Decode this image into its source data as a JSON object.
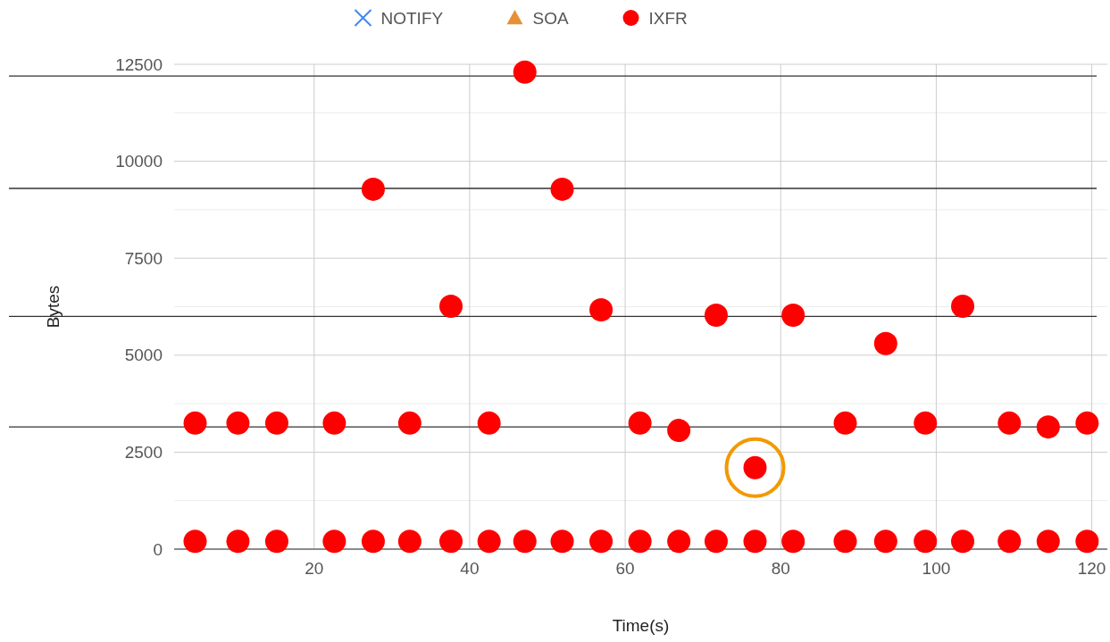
{
  "chart_data": {
    "type": "scatter",
    "xlabel": "Time(s)",
    "ylabel": "Bytes",
    "legend": "top",
    "grid": true,
    "xlim": [
      2,
      122
    ],
    "xticks": [
      20,
      40,
      60,
      80,
      100,
      120
    ],
    "ylim": [
      0,
      12500
    ],
    "yticks": [
      0,
      {
        "value": 1250,
        "label": null
      },
      2500,
      {
        "value": 3750,
        "label": null
      },
      5000,
      {
        "value": 6250,
        "label": null
      },
      7500,
      {
        "value": 8750,
        "label": null
      },
      10000,
      {
        "value": 11250,
        "label": null
      },
      12500
    ],
    "series": [
      {
        "name": "NOTIFY",
        "color": "#4285f4",
        "marker": "cross"
      },
      {
        "name": "SOA",
        "color": "#e69138",
        "marker": "triangle"
      },
      {
        "name": "IXFR",
        "color": "#ff0000",
        "marker": "circle",
        "x": [
          4.7,
          10.2,
          15.2,
          22.6,
          27.6,
          32.3,
          37.6,
          42.5,
          47.1,
          51.9,
          56.9,
          61.9,
          66.9,
          71.7,
          76.7,
          81.6,
          88.3,
          93.5,
          98.6,
          103.4,
          109.4,
          114.4,
          119.4,
          47.1,
          27.6,
          51.9,
          37.6,
          56.9,
          71.7,
          81.6,
          93.5,
          103.4,
          4.7,
          10.2,
          15.2,
          22.6,
          32.3,
          42.5,
          61.9,
          88.3,
          98.6,
          109.4,
          119.4,
          66.9,
          114.4,
          76.7
        ],
        "values": [
          200,
          200,
          200,
          200,
          200,
          200,
          200,
          200,
          200,
          200,
          200,
          200,
          200,
          200,
          200,
          200,
          200,
          200,
          200,
          200,
          200,
          200,
          200,
          12300,
          9280,
          9280,
          6260,
          6170,
          6030,
          6030,
          5300,
          6260,
          3250,
          3250,
          3250,
          3250,
          3250,
          3250,
          3250,
          3250,
          3250,
          3250,
          3250,
          3060,
          3150,
          2100
        ]
      }
    ],
    "ref_lines": [
      {
        "axis": "y",
        "value": 12200,
        "color": "#333333"
      },
      {
        "axis": "y",
        "value": 9300,
        "color": "#333333"
      },
      {
        "axis": "y",
        "value": 6000,
        "color": "#333333"
      },
      {
        "axis": "y",
        "value": 3150,
        "color": "#333333"
      }
    ]
  }
}
